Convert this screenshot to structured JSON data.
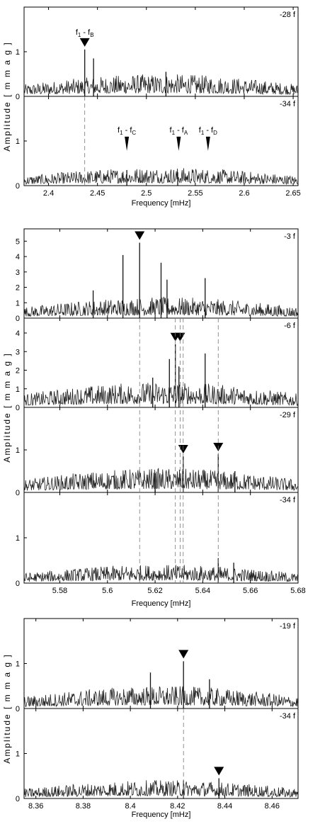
{
  "figure": {
    "ylabel": "Amplitude   [ m m a g ]"
  },
  "chart_data": [
    {
      "type": "line",
      "xlabel": "Frequency [mHz]",
      "xlim": [
        2.375,
        2.655
      ],
      "xticks": [
        "2.4",
        "2.45",
        "2.5",
        "2.55",
        "2.6",
        "2.65"
      ],
      "panels": [
        {
          "name": "-28 f",
          "ylim": [
            0,
            2.0
          ],
          "yticks": [
            "0",
            "1"
          ],
          "noise_level": 0.22,
          "peaks": [
            {
              "x": 2.437,
              "y": 1.05
            },
            {
              "x": 2.446,
              "y": 0.85
            },
            {
              "x": 2.52,
              "y": 0.55
            }
          ],
          "markers": [
            {
              "x": 2.437,
              "label_main": "f",
              "label_sub1": "1",
              "label_mid": " - f",
              "label_sub2": "B"
            }
          ]
        },
        {
          "name": "-34 f",
          "ylim": [
            0,
            2.0
          ],
          "yticks": [
            "0",
            "1"
          ],
          "noise_level": 0.18,
          "peaks": [
            {
              "x": 2.48,
              "y": 0.35
            },
            {
              "x": 2.532,
              "y": 0.3
            }
          ],
          "markers": [
            {
              "x": 2.48,
              "label_main": "f",
              "label_sub1": "1",
              "label_mid": " - f",
              "label_sub2": "C",
              "style": "thin"
            },
            {
              "x": 2.533,
              "label_main": "f",
              "label_sub1": "1",
              "label_mid": " - f",
              "label_sub2": "A",
              "style": "thin"
            },
            {
              "x": 2.563,
              "label_main": "f",
              "label_sub1": "1",
              "label_mid": " - f",
              "label_sub2": "D",
              "style": "thin"
            }
          ]
        }
      ],
      "dashed_x": [
        2.437
      ]
    },
    {
      "type": "line",
      "xlabel": "Frequency [mHz]",
      "xlim": [
        5.565,
        5.68
      ],
      "xticks": [
        "5.58",
        "5.6",
        "5.62",
        "5.64",
        "5.66",
        "5.68"
      ],
      "panels": [
        {
          "name": "-3 f",
          "ylim": [
            0,
            5.8
          ],
          "yticks": [
            "0",
            "1",
            "2",
            "3",
            "4",
            "5"
          ],
          "noise_level": 0.6,
          "peaks": [
            {
              "x": 5.6065,
              "y": 4.1
            },
            {
              "x": 5.6135,
              "y": 4.9
            },
            {
              "x": 5.6225,
              "y": 3.6
            },
            {
              "x": 5.625,
              "y": 2.5
            },
            {
              "x": 5.641,
              "y": 2.6
            },
            {
              "x": 5.594,
              "y": 1.8
            }
          ],
          "markers": [
            {
              "x": 5.6135
            }
          ]
        },
        {
          "name": "-6 f",
          "ylim": [
            0,
            4.8
          ],
          "yticks": [
            "0",
            "1",
            "2",
            "3",
            "4"
          ],
          "noise_level": 0.6,
          "peaks": [
            {
              "x": 5.6285,
              "y": 3.4
            },
            {
              "x": 5.63,
              "y": 2.2
            },
            {
              "x": 5.641,
              "y": 2.9
            },
            {
              "x": 5.626,
              "y": 2.6
            },
            {
              "x": 5.619,
              "y": 1.6
            }
          ],
          "markers": [
            {
              "x": 5.6285
            },
            {
              "x": 5.6305
            }
          ]
        },
        {
          "name": "-29 f",
          "ylim": [
            0,
            2.0
          ],
          "yticks": [
            "0",
            "1"
          ],
          "noise_level": 0.25,
          "peaks": [
            {
              "x": 5.6318,
              "y": 0.85
            },
            {
              "x": 5.6465,
              "y": 0.9
            },
            {
              "x": 5.6535,
              "y": 0.5
            },
            {
              "x": 5.62,
              "y": 0.45
            }
          ],
          "markers": [
            {
              "x": 5.6318
            },
            {
              "x": 5.6465
            }
          ]
        },
        {
          "name": "-34 f",
          "ylim": [
            0,
            2.0
          ],
          "yticks": [
            "0",
            "1"
          ],
          "noise_level": 0.18,
          "peaks": [
            {
              "x": 5.6465,
              "y": 0.55
            },
            {
              "x": 5.653,
              "y": 0.45
            }
          ],
          "markers": []
        }
      ],
      "dashed_x": [
        5.6135,
        5.6285,
        5.6305,
        5.6318,
        5.6465
      ]
    },
    {
      "type": "line",
      "xlabel": "Frequency [mHz]",
      "xlim": [
        8.355,
        8.471
      ],
      "xticks": [
        "8.36",
        "8.38",
        "8.4",
        "8.42",
        "8.44",
        "8.46"
      ],
      "panels": [
        {
          "name": "-19 f",
          "ylim": [
            0,
            2.0
          ],
          "yticks": [
            "0",
            "1"
          ],
          "noise_level": 0.22,
          "peaks": [
            {
              "x": 8.4225,
              "y": 1.05
            },
            {
              "x": 8.4085,
              "y": 0.8
            },
            {
              "x": 8.4335,
              "y": 0.65
            }
          ],
          "markers": [
            {
              "x": 8.4225
            }
          ]
        },
        {
          "name": "-34 f",
          "ylim": [
            0,
            2.0
          ],
          "yticks": [
            "0",
            "1"
          ],
          "noise_level": 0.18,
          "peaks": [
            {
              "x": 8.4375,
              "y": 0.45
            },
            {
              "x": 8.4225,
              "y": 0.4
            }
          ],
          "markers": [
            {
              "x": 8.4375
            }
          ]
        }
      ],
      "dashed_x": [
        8.4225
      ]
    }
  ]
}
